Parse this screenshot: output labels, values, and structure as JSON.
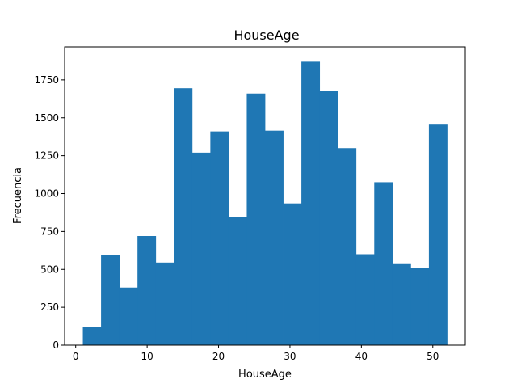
{
  "chart_data": {
    "type": "bar",
    "title": "HouseAge",
    "xlabel": "HouseAge",
    "ylabel": "Frecuencia",
    "xlim": [
      -1.55,
      54.55
    ],
    "ylim": [
      0,
      1968
    ],
    "xticks": [
      0,
      10,
      20,
      30,
      40,
      50
    ],
    "yticks": [
      0,
      250,
      500,
      750,
      1000,
      1250,
      1500,
      1750
    ],
    "grid": false,
    "color": "#1f77b4",
    "bins": [
      {
        "x0": 1.0,
        "x1": 3.55,
        "value": 120
      },
      {
        "x0": 3.55,
        "x1": 6.1,
        "value": 595
      },
      {
        "x0": 6.1,
        "x1": 8.65,
        "value": 380
      },
      {
        "x0": 8.65,
        "x1": 11.2,
        "value": 720
      },
      {
        "x0": 11.2,
        "x1": 13.75,
        "value": 545
      },
      {
        "x0": 13.75,
        "x1": 16.3,
        "value": 1695
      },
      {
        "x0": 16.3,
        "x1": 18.85,
        "value": 1270
      },
      {
        "x0": 18.85,
        "x1": 21.4,
        "value": 1410
      },
      {
        "x0": 21.4,
        "x1": 23.95,
        "value": 845
      },
      {
        "x0": 23.95,
        "x1": 26.5,
        "value": 1660
      },
      {
        "x0": 26.5,
        "x1": 29.05,
        "value": 1415
      },
      {
        "x0": 29.05,
        "x1": 31.6,
        "value": 935
      },
      {
        "x0": 31.6,
        "x1": 34.15,
        "value": 1870
      },
      {
        "x0": 34.15,
        "x1": 36.7,
        "value": 1680
      },
      {
        "x0": 36.7,
        "x1": 39.25,
        "value": 1300
      },
      {
        "x0": 39.25,
        "x1": 41.8,
        "value": 600
      },
      {
        "x0": 41.8,
        "x1": 44.35,
        "value": 1075
      },
      {
        "x0": 44.35,
        "x1": 46.9,
        "value": 540
      },
      {
        "x0": 46.9,
        "x1": 49.45,
        "value": 510
      },
      {
        "x0": 49.45,
        "x1": 52.0,
        "value": 1455
      }
    ]
  }
}
